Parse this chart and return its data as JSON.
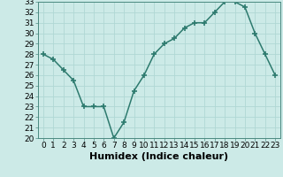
{
  "x": [
    0,
    1,
    2,
    3,
    4,
    5,
    6,
    7,
    8,
    9,
    10,
    11,
    12,
    13,
    14,
    15,
    16,
    17,
    18,
    19,
    20,
    21,
    22,
    23
  ],
  "y": [
    28,
    27.5,
    26.5,
    25.5,
    23,
    23,
    23,
    20,
    21.5,
    24.5,
    26,
    28,
    29,
    29.5,
    30.5,
    31,
    31,
    32,
    33,
    33,
    32.5,
    30,
    28,
    26
  ],
  "xlabel": "Humidex (Indice chaleur)",
  "xlim": [
    -0.5,
    23.5
  ],
  "ylim": [
    20,
    33
  ],
  "yticks": [
    20,
    21,
    22,
    23,
    24,
    25,
    26,
    27,
    28,
    29,
    30,
    31,
    32,
    33
  ],
  "xticks": [
    0,
    1,
    2,
    3,
    4,
    5,
    6,
    7,
    8,
    9,
    10,
    11,
    12,
    13,
    14,
    15,
    16,
    17,
    18,
    19,
    20,
    21,
    22,
    23
  ],
  "line_color": "#2d7a6e",
  "bg_color": "#cceae7",
  "grid_color": "#b0d8d4",
  "spine_color": "#4a8a80",
  "tick_label_fontsize": 6.5,
  "xlabel_fontsize": 8,
  "line_width": 1.1,
  "marker_size": 4
}
